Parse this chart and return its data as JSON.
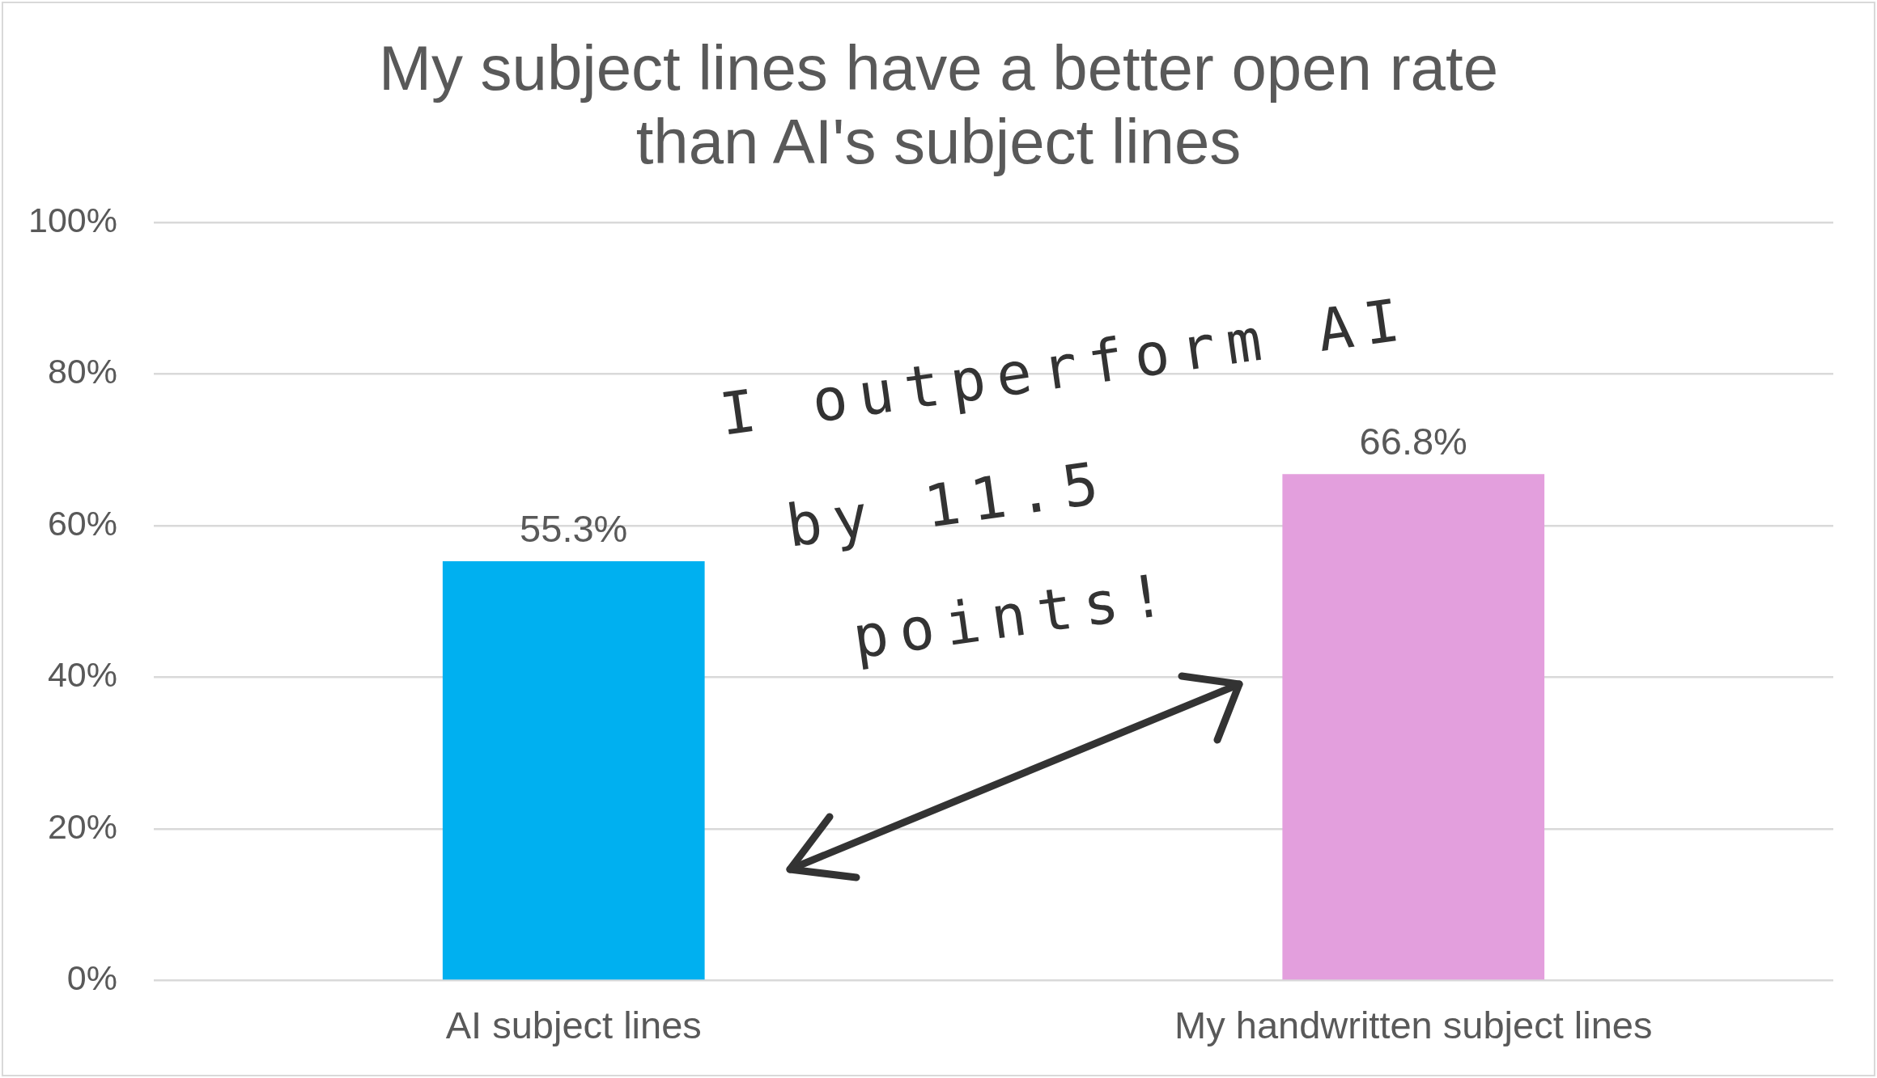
{
  "chart_data": {
    "type": "bar",
    "title": "My subject lines have a better open rate than AI's subject lines",
    "categories": [
      "AI subject lines",
      "My handwritten subject lines"
    ],
    "values": [
      55.3,
      66.8
    ],
    "colors": [
      "#00b0f0",
      "#e39fdd"
    ],
    "value_labels": [
      "55.3%",
      "66.8%"
    ],
    "ylim": [
      0,
      100
    ],
    "yticks": [
      {
        "value": 0,
        "label": "0%"
      },
      {
        "value": 20,
        "label": "20%"
      },
      {
        "value": 40,
        "label": "40%"
      },
      {
        "value": 60,
        "label": "60%"
      },
      {
        "value": 80,
        "label": "80%"
      },
      {
        "value": 100,
        "label": "100%"
      }
    ],
    "grid": "y",
    "legend": false,
    "annotations": [
      "I outperform AI\nby 11.5\npoints!"
    ]
  }
}
